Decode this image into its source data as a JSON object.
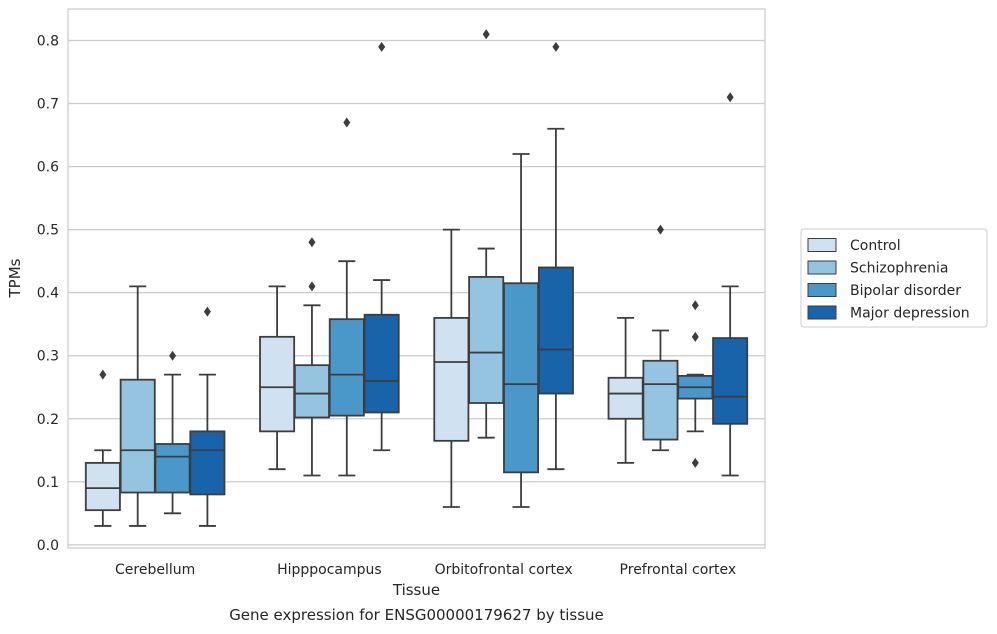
{
  "caption": "Gene expression for ENSG00000179627 by tissue",
  "chart_data": {
    "type": "box",
    "xlabel": "Tissue",
    "ylabel": "TPMs",
    "ylim": [
      -0.005,
      0.85
    ],
    "yticks": [
      0.0,
      0.1,
      0.2,
      0.3,
      0.4,
      0.5,
      0.6,
      0.7,
      0.8
    ],
    "ytick_labels": [
      "0.0",
      "0.1",
      "0.2",
      "0.3",
      "0.4",
      "0.5",
      "0.6",
      "0.7",
      "0.8"
    ],
    "grid": "horizontal",
    "legend_position": "right",
    "categories": [
      "Cerebellum",
      "Hipppocampus",
      "Orbitofrontal cortex",
      "Prefrontal cortex"
    ],
    "series": [
      {
        "name": "Control",
        "color": "#d0e1f2",
        "boxes": [
          {
            "whislo": 0.03,
            "q1": 0.055,
            "med": 0.09,
            "q3": 0.13,
            "whishi": 0.15,
            "fliers": [
              0.27
            ]
          },
          {
            "whislo": 0.12,
            "q1": 0.18,
            "med": 0.25,
            "q3": 0.33,
            "whishi": 0.41,
            "fliers": []
          },
          {
            "whislo": 0.06,
            "q1": 0.165,
            "med": 0.29,
            "q3": 0.36,
            "whishi": 0.5,
            "fliers": []
          },
          {
            "whislo": 0.13,
            "q1": 0.2,
            "med": 0.24,
            "q3": 0.265,
            "whishi": 0.36,
            "fliers": []
          }
        ]
      },
      {
        "name": "Schizophrenia",
        "color": "#94c4df",
        "boxes": [
          {
            "whislo": 0.03,
            "q1": 0.083,
            "med": 0.15,
            "q3": 0.262,
            "whishi": 0.41,
            "fliers": []
          },
          {
            "whislo": 0.11,
            "q1": 0.202,
            "med": 0.24,
            "q3": 0.285,
            "whishi": 0.38,
            "fliers": [
              0.41,
              0.48
            ]
          },
          {
            "whislo": 0.17,
            "q1": 0.225,
            "med": 0.305,
            "q3": 0.425,
            "whishi": 0.47,
            "fliers": [
              0.81
            ]
          },
          {
            "whislo": 0.15,
            "q1": 0.167,
            "med": 0.255,
            "q3": 0.292,
            "whishi": 0.34,
            "fliers": [
              0.5
            ]
          }
        ]
      },
      {
        "name": "Bipolar disorder",
        "color": "#4a98c9",
        "boxes": [
          {
            "whislo": 0.05,
            "q1": 0.083,
            "med": 0.14,
            "q3": 0.16,
            "whishi": 0.27,
            "fliers": [
              0.3
            ]
          },
          {
            "whislo": 0.11,
            "q1": 0.205,
            "med": 0.27,
            "q3": 0.358,
            "whishi": 0.45,
            "fliers": [
              0.67
            ]
          },
          {
            "whislo": 0.06,
            "q1": 0.115,
            "med": 0.255,
            "q3": 0.415,
            "whishi": 0.62,
            "fliers": []
          },
          {
            "whislo": 0.18,
            "q1": 0.232,
            "med": 0.25,
            "q3": 0.268,
            "whishi": 0.27,
            "fliers": [
              0.13,
              0.33,
              0.38
            ]
          }
        ]
      },
      {
        "name": "Major depression",
        "color": "#1764ab",
        "boxes": [
          {
            "whislo": 0.03,
            "q1": 0.08,
            "med": 0.15,
            "q3": 0.18,
            "whishi": 0.27,
            "fliers": [
              0.37
            ]
          },
          {
            "whislo": 0.15,
            "q1": 0.21,
            "med": 0.26,
            "q3": 0.365,
            "whishi": 0.42,
            "fliers": [
              0.79
            ]
          },
          {
            "whislo": 0.12,
            "q1": 0.24,
            "med": 0.31,
            "q3": 0.44,
            "whishi": 0.66,
            "fliers": [
              0.79
            ]
          },
          {
            "whislo": 0.11,
            "q1": 0.192,
            "med": 0.235,
            "q3": 0.328,
            "whishi": 0.41,
            "fliers": [
              0.71
            ]
          }
        ]
      }
    ]
  }
}
